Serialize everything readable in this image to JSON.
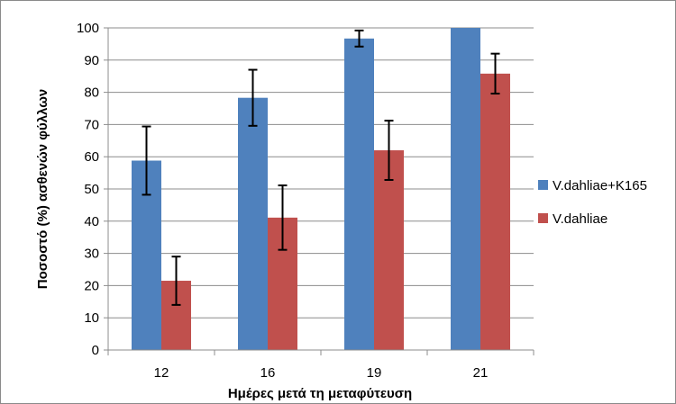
{
  "chart_data": {
    "type": "bar",
    "categories": [
      "12",
      "16",
      "19",
      "21"
    ],
    "series": [
      {
        "name": "V.dahliae+K165",
        "color": "#4f81bd",
        "values": [
          58.8,
          78.3,
          96.7,
          100
        ],
        "errors": [
          10.6,
          8.7,
          2.5,
          0
        ]
      },
      {
        "name": "V.dahliae",
        "color": "#c0504d",
        "values": [
          21.5,
          41.1,
          62.0,
          85.8
        ],
        "errors": [
          7.5,
          10.0,
          9.2,
          6.2
        ]
      }
    ],
    "title": "",
    "xlabel": "Ημέρες μετά τη μεταφύτευση",
    "ylabel": "Ποσοστό (%) ασθενών φύλλων",
    "ylim": [
      0,
      100
    ],
    "yticks": [
      0,
      10,
      20,
      30,
      40,
      50,
      60,
      70,
      80,
      90,
      100
    ],
    "grid": true,
    "legend": "right"
  }
}
